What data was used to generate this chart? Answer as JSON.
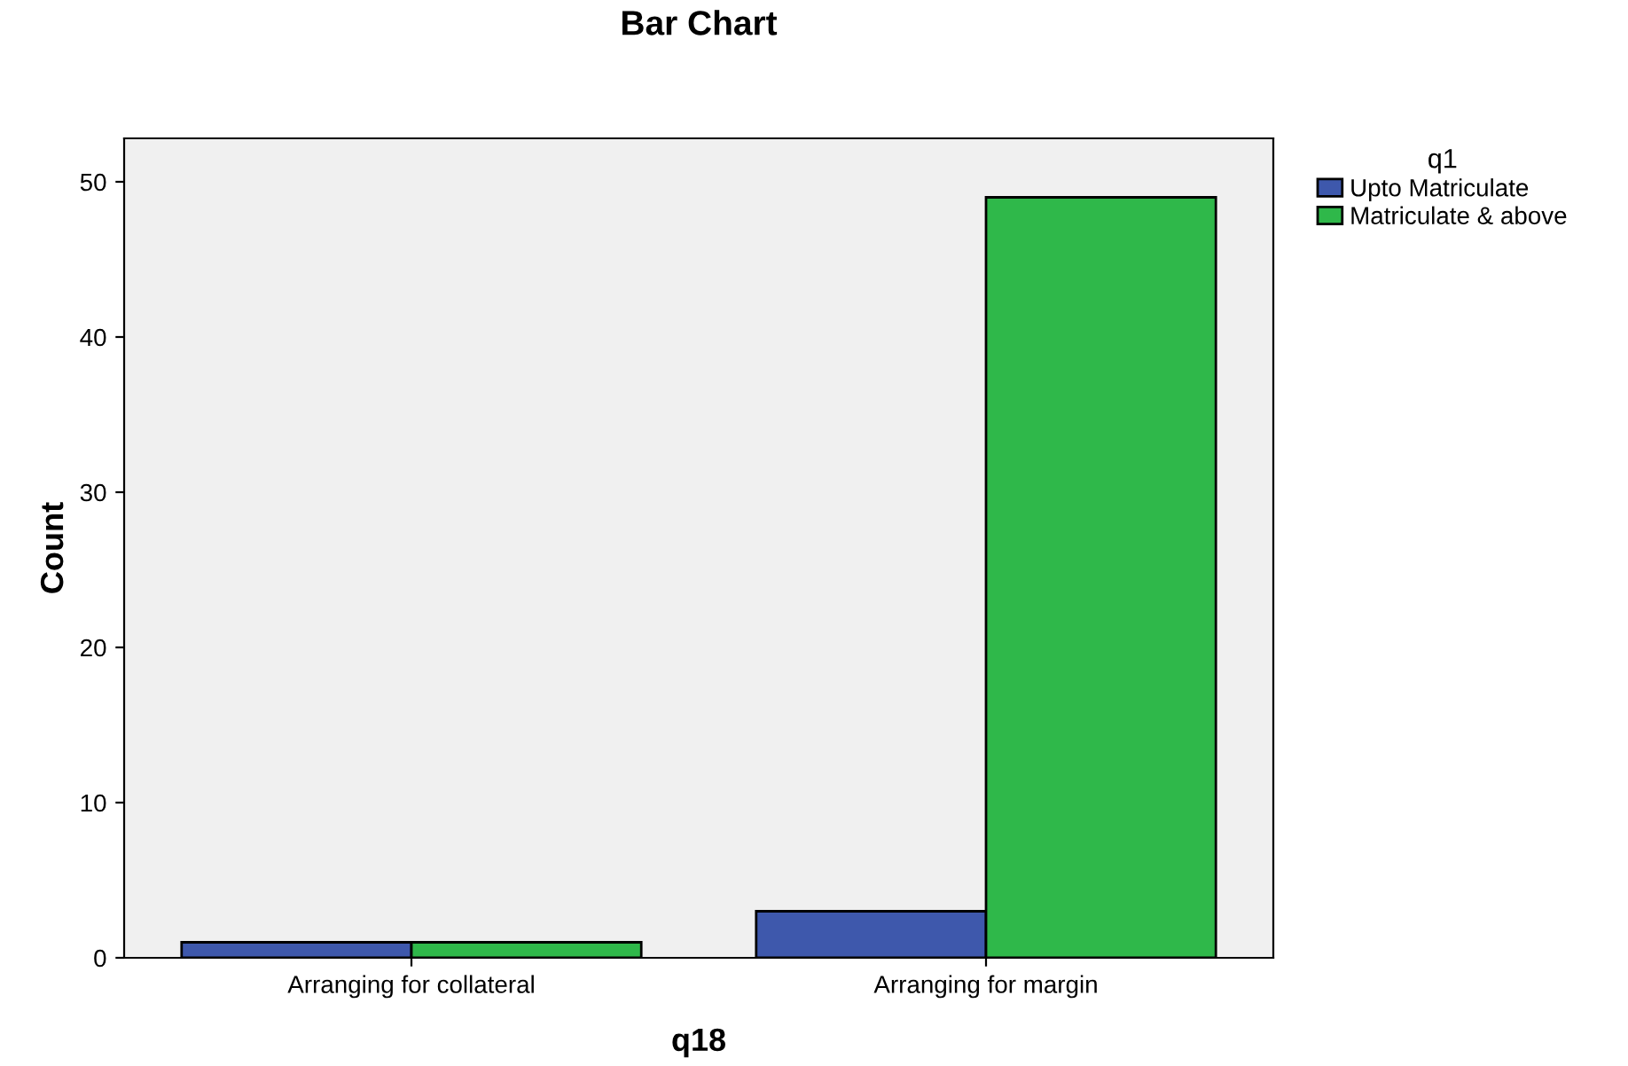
{
  "chart_data": {
    "type": "bar",
    "title": "Bar Chart",
    "xlabel": "q18",
    "ylabel": "Count",
    "legend_title": "q1",
    "categories": [
      "Arranging for collateral",
      "Arranging for margin"
    ],
    "series": [
      {
        "name": "Upto Matriculate",
        "color": "#3e58ac",
        "values": [
          1,
          3
        ]
      },
      {
        "name": "Matriculate & above",
        "color": "#2fb84a",
        "values": [
          1,
          49
        ]
      }
    ],
    "ylim": [
      0,
      52.8
    ],
    "yticks": [
      0,
      10,
      20,
      30,
      40,
      50
    ],
    "grid": false,
    "legend": "top right"
  }
}
